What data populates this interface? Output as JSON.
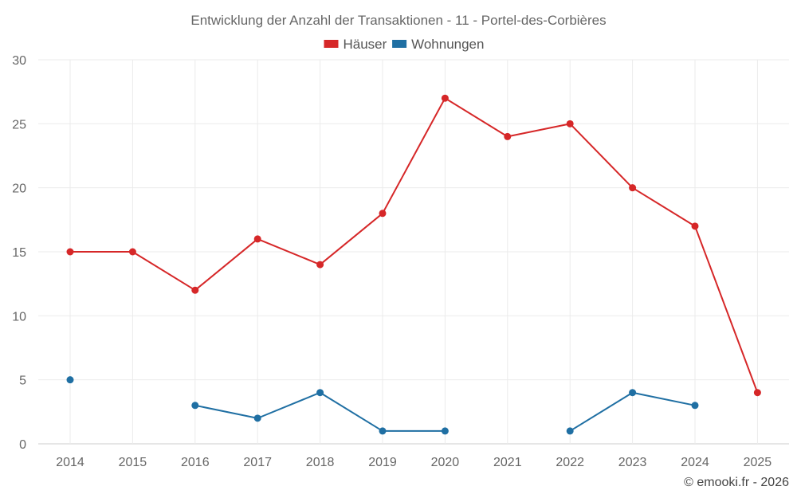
{
  "chart_data": {
    "type": "line",
    "title": "Entwicklung der Anzahl der Transaktionen - 11 - Portel-des-Corbières",
    "xlabel": "",
    "ylabel": "",
    "categories": [
      "2014",
      "2015",
      "2016",
      "2017",
      "2018",
      "2019",
      "2020",
      "2021",
      "2022",
      "2023",
      "2024",
      "2025"
    ],
    "ylim": [
      0,
      30
    ],
    "yticks": [
      0,
      5,
      10,
      15,
      20,
      25,
      30
    ],
    "grid": true,
    "legend_position": "top-center",
    "series": [
      {
        "name": "Häuser",
        "color": "#d62728",
        "values": [
          15,
          15,
          12,
          16,
          14,
          18,
          27,
          24,
          25,
          20,
          17,
          4
        ]
      },
      {
        "name": "Wohnungen",
        "color": "#1f6fa3",
        "values": [
          5,
          null,
          3,
          2,
          4,
          1,
          1,
          null,
          1,
          4,
          3,
          null
        ]
      }
    ]
  },
  "credit": "© emooki.fr - 2026"
}
